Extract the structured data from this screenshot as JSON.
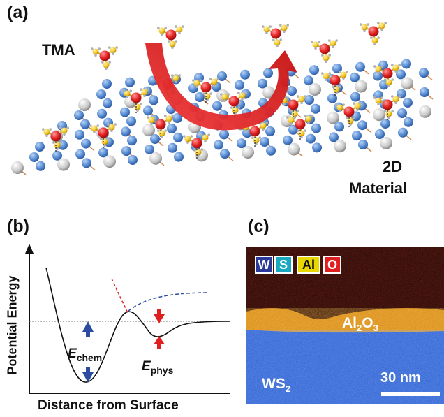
{
  "panel_a": {
    "label": "(a)",
    "tma_label": "TMA",
    "material_label_line1": "2D",
    "material_label_line2": "Material"
  },
  "panel_b": {
    "label": "(b)",
    "ylabel": "Potential Energy",
    "xlabel": "Distance from Surface",
    "echem_main": "E",
    "echem_sub": "chem",
    "ephys_main": "E",
    "ephys_sub": "phys"
  },
  "panel_c": {
    "label": "(c)",
    "legend": [
      {
        "label": "W",
        "color": "#2b3a9a"
      },
      {
        "label": "S",
        "color": "#19a8c0"
      },
      {
        "label": "Al",
        "color": "#e8d800"
      },
      {
        "label": "O",
        "color": "#e02020"
      }
    ],
    "film_main": "Al",
    "film_sub1": "2",
    "film_mid": "O",
    "film_sub2": "3",
    "substrate_main": "WS",
    "substrate_sub": "2",
    "scale_label": "30 nm"
  },
  "colors": {
    "atom_blue": "#5b8fd4",
    "atom_grey": "#c8c8c8",
    "tma_red": "#e52222",
    "tma_yellow": "#f1c21b",
    "arrow_red": "#e32020",
    "curve_black": "#111111",
    "arrow_blue": "#2d4ba0"
  }
}
